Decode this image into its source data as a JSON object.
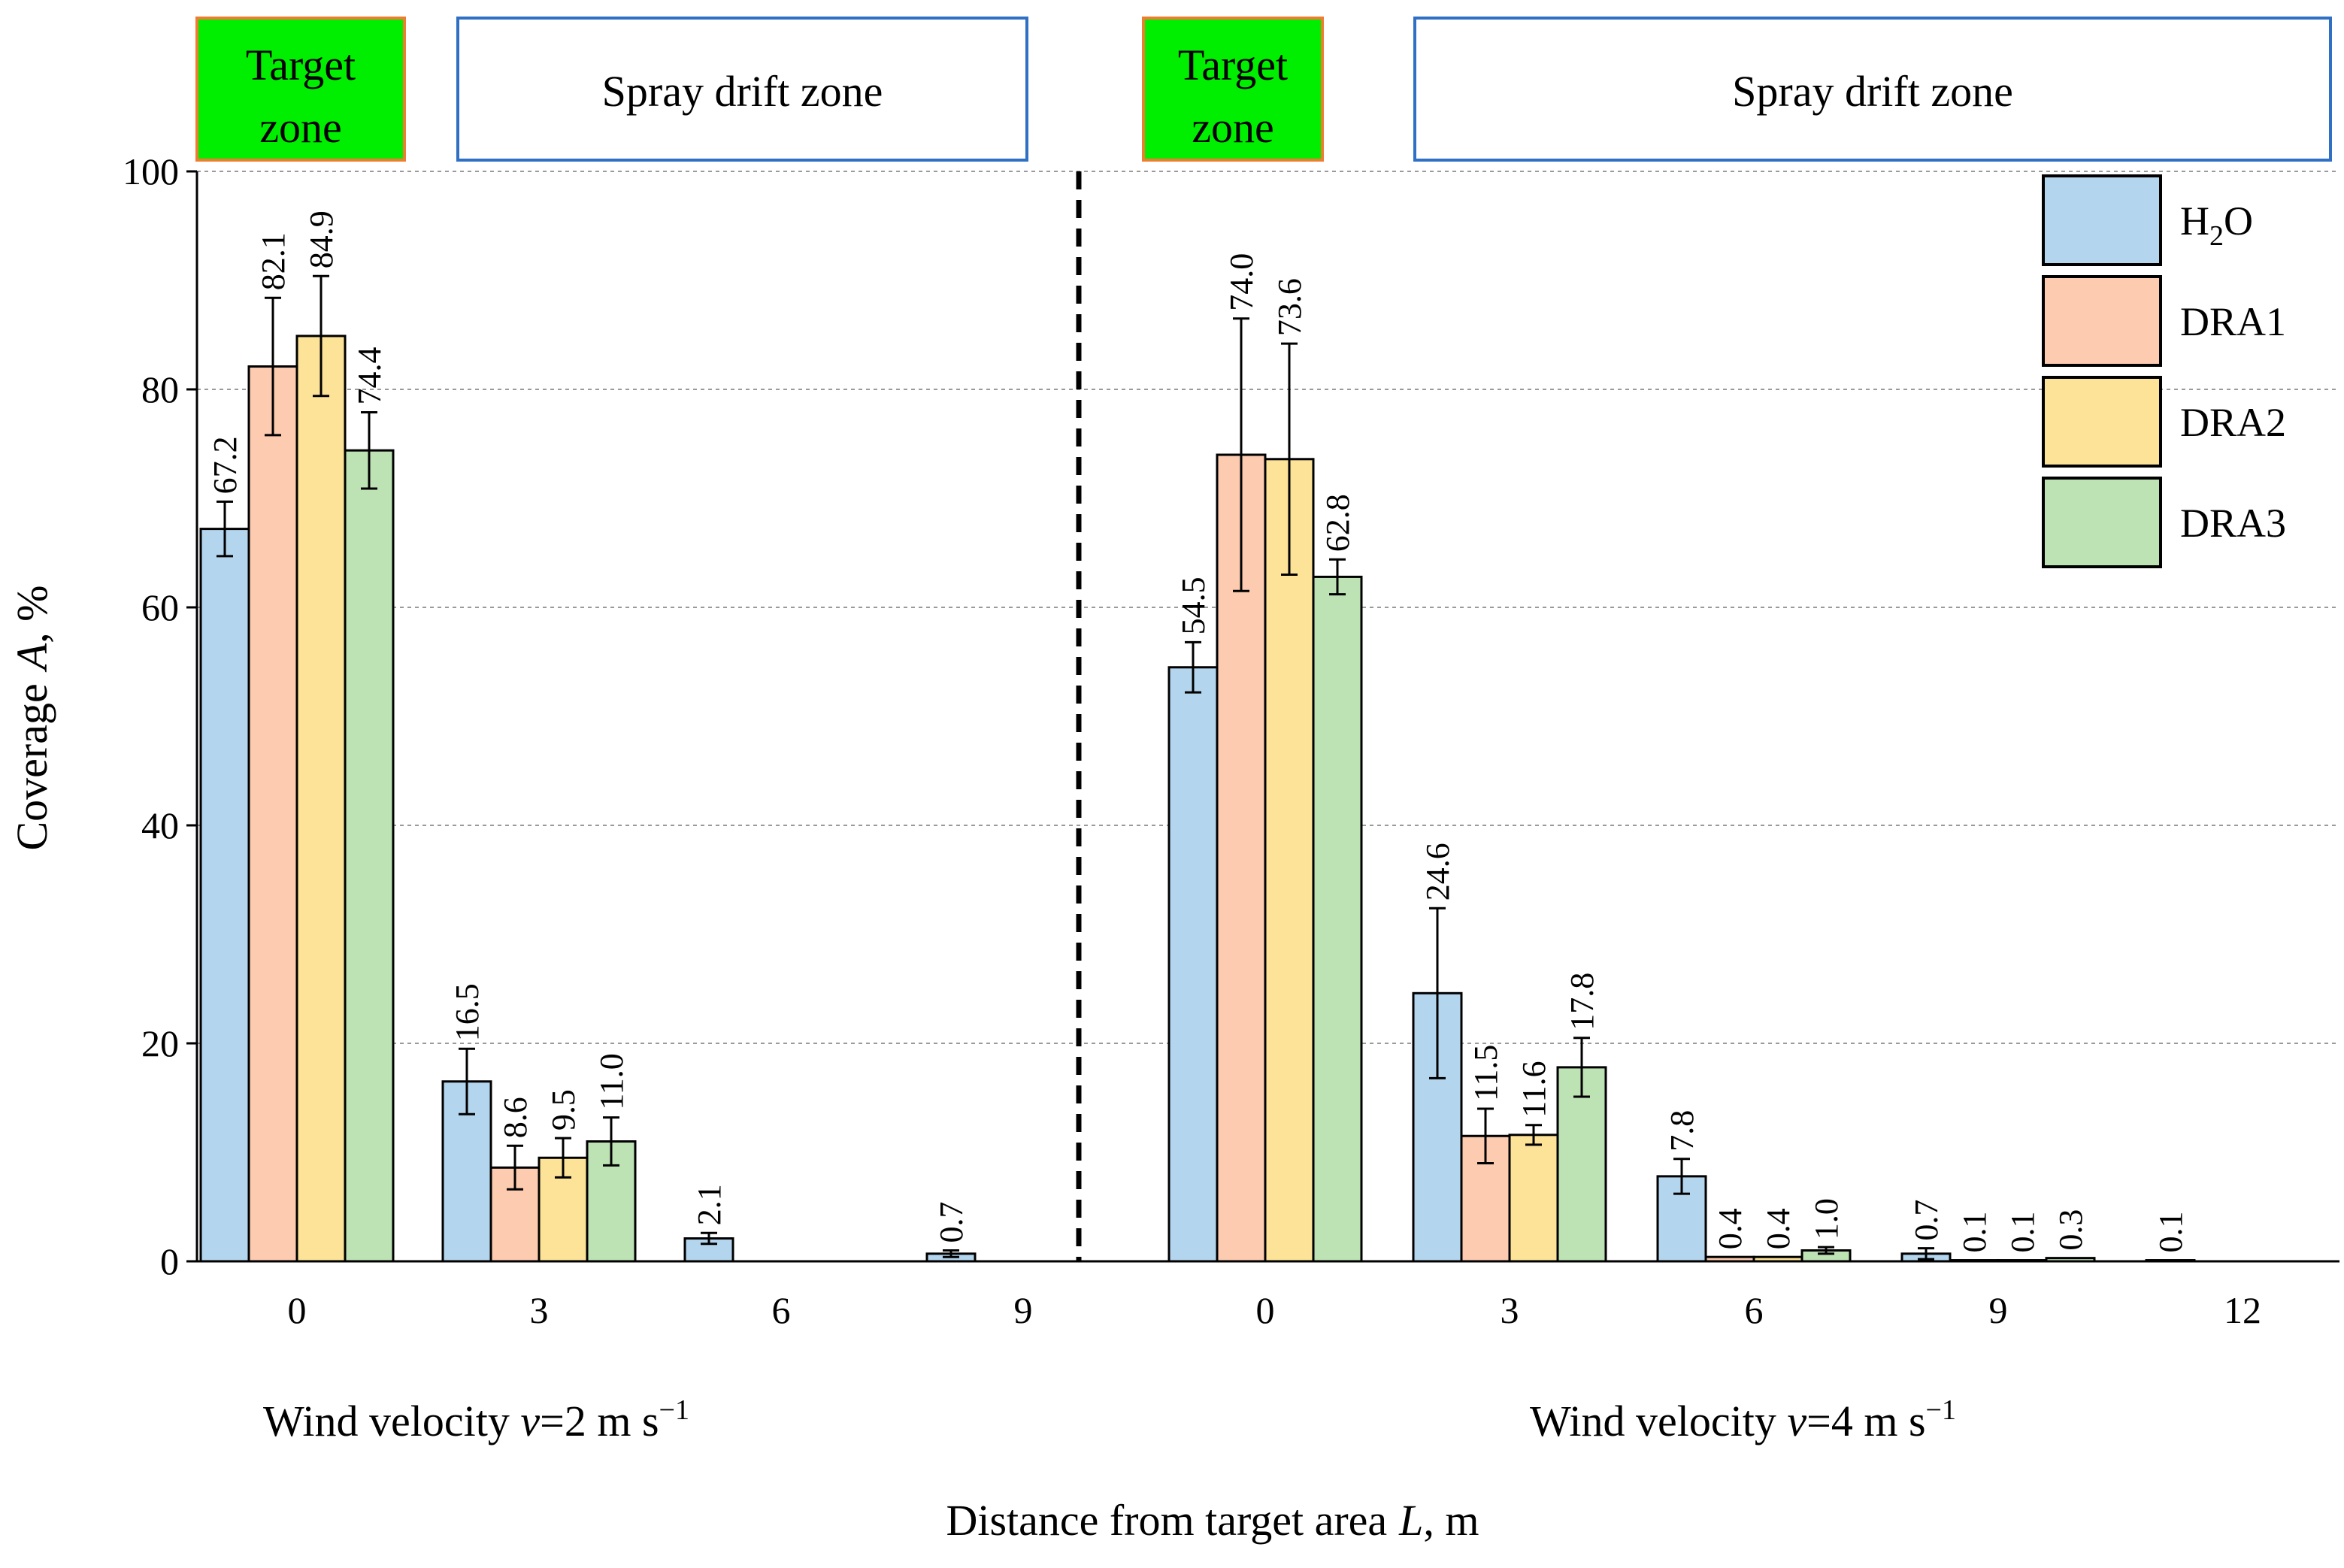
{
  "chart_data": {
    "type": "bar",
    "title": "",
    "ylabel_text": "Coverage",
    "ylabel_var": "A",
    "ylabel_unit": ", %",
    "xlabel_text": "Distance from target area",
    "xlabel_var": "L",
    "xlabel_unit": ", m",
    "ylim": [
      0,
      100
    ],
    "yticks": [
      0,
      20,
      40,
      60,
      80,
      100
    ],
    "grid": "horizontal dashed",
    "legend_position": "top-right",
    "series": [
      {
        "name": "H2O",
        "display_main": "H",
        "display_sub": "2",
        "display_tail": "O",
        "color": "#b4d5ee"
      },
      {
        "name": "DRA1",
        "color": "#fccbb0"
      },
      {
        "name": "DRA2",
        "color": "#fde398"
      },
      {
        "name": "DRA3",
        "color": "#bde2b4"
      }
    ],
    "panels": [
      {
        "wind_label_prefix": "Wind velocity ",
        "wind_label_var": "v",
        "wind_label_value": "=2 m s",
        "wind_label_exp": "−1",
        "categories": [
          "0",
          "3",
          "6",
          "9"
        ],
        "values": [
          [
            67.2,
            82.1,
            84.9,
            74.4
          ],
          [
            16.5,
            8.6,
            9.5,
            11.0
          ],
          [
            2.1,
            null,
            null,
            null
          ],
          [
            0.7,
            null,
            null,
            null
          ]
        ],
        "errors": [
          [
            2.5,
            6.3,
            5.5,
            3.5
          ],
          [
            3.0,
            2.0,
            1.8,
            2.2
          ],
          [
            0.5,
            null,
            null,
            null
          ],
          [
            0.3,
            null,
            null,
            null
          ]
        ]
      },
      {
        "wind_label_prefix": "Wind velocity ",
        "wind_label_var": "v",
        "wind_label_value": "=4 m s",
        "wind_label_exp": "−1",
        "categories": [
          "0",
          "3",
          "6",
          "9",
          "12"
        ],
        "values": [
          [
            54.5,
            74.0,
            73.6,
            62.8
          ],
          [
            24.6,
            11.5,
            11.6,
            17.8
          ],
          [
            7.8,
            0.4,
            0.4,
            1.0
          ],
          [
            0.7,
            0.1,
            0.1,
            0.3
          ],
          [
            0.1,
            null,
            null,
            null
          ]
        ],
        "errors": [
          [
            2.3,
            12.5,
            10.6,
            1.6
          ],
          [
            7.8,
            2.5,
            0.9,
            2.7
          ],
          [
            1.6,
            null,
            null,
            0.3
          ],
          [
            0.5,
            null,
            null,
            null
          ],
          [
            null,
            null,
            null,
            null
          ]
        ]
      }
    ],
    "zones": [
      {
        "kind": "target",
        "line1": "Target",
        "line2": "zone",
        "fill": "#00ee00",
        "border": "#ef7d31"
      },
      {
        "kind": "drift",
        "line1": "Spray drift zone",
        "fill": "#ffffff",
        "border": "#2f6fc4"
      },
      {
        "kind": "target",
        "line1": "Target",
        "line2": "zone",
        "fill": "#00ee00",
        "border": "#ef7d31"
      },
      {
        "kind": "drift",
        "line1": "Spray drift zone",
        "fill": "#ffffff",
        "border": "#2f6fc4"
      }
    ]
  }
}
